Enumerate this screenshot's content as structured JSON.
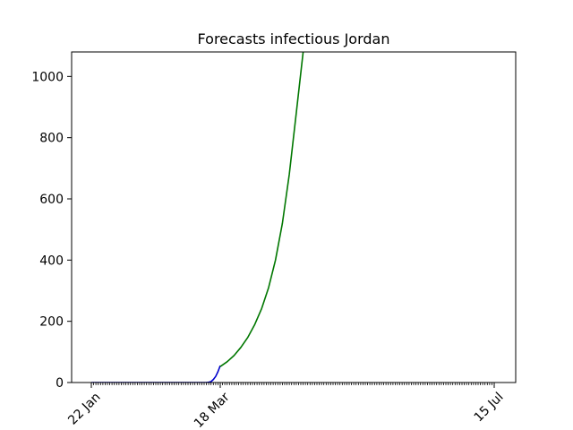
{
  "chart_data": {
    "type": "line",
    "title": "Forecasts infectious Jordan",
    "xlabel": "",
    "ylabel": "",
    "x_axis": "date",
    "x_ticks": [
      "2020-01-22",
      "2020-03-18",
      "2020-07-15"
    ],
    "x_tick_labels": [
      "22 Jan",
      "18 Mar",
      "15 Jul"
    ],
    "minor_ticks": "daily",
    "xlim": [
      "2020-01-22",
      "2020-07-15"
    ],
    "ylim": [
      0,
      1080
    ],
    "y_ticks": [
      0,
      200,
      400,
      600,
      800,
      1000
    ],
    "grid": false,
    "legend": "none",
    "series": [
      {
        "color": "#0000cc",
        "points": [
          [
            "2020-01-22",
            0
          ],
          [
            "2020-02-01",
            0
          ],
          [
            "2020-02-15",
            0
          ],
          [
            "2020-03-01",
            0
          ],
          [
            "2020-03-10",
            0
          ],
          [
            "2020-03-12",
            0
          ],
          [
            "2020-03-13",
            1
          ],
          [
            "2020-03-14",
            3
          ],
          [
            "2020-03-15",
            10
          ],
          [
            "2020-03-16",
            20
          ],
          [
            "2020-03-17",
            35
          ],
          [
            "2020-03-18",
            55
          ]
        ]
      },
      {
        "color": "#007700",
        "points": [
          [
            "2020-03-18",
            52
          ],
          [
            "2020-03-21",
            68
          ],
          [
            "2020-03-24",
            88
          ],
          [
            "2020-03-27",
            115
          ],
          [
            "2020-03-30",
            148
          ],
          [
            "2020-04-02",
            190
          ],
          [
            "2020-04-05",
            242
          ],
          [
            "2020-04-08",
            310
          ],
          [
            "2020-04-11",
            400
          ],
          [
            "2020-04-14",
            520
          ],
          [
            "2020-04-17",
            680
          ],
          [
            "2020-04-20",
            880
          ],
          [
            "2020-04-23",
            1080
          ]
        ]
      }
    ]
  }
}
